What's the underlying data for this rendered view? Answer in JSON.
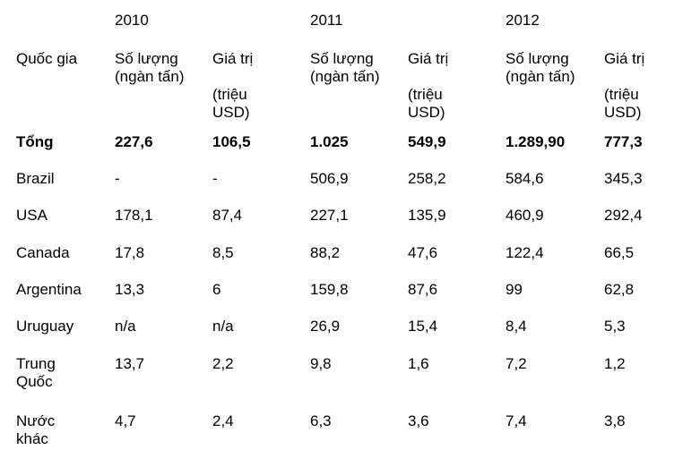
{
  "years": [
    "2010",
    "2011",
    "2012"
  ],
  "header": {
    "country": "Quốc gia",
    "quantity": "Số lượng\n(ngàn tấn)",
    "value_2010": "Giá trị\n\n(triệu\nUSD)",
    "value_2011": "Giá trị\n\n(triệu\nUSD)",
    "value_2012": "Giá trị\n\n(triệu\nUSD)"
  },
  "rows": [
    {
      "country": "Tổng",
      "q2010": "227,6",
      "v2010": "106,5",
      "q2011": "1.025",
      "v2011": "549,9",
      "q2012": "1.289,90",
      "v2012": "777,3"
    },
    {
      "country": "Brazil",
      "q2010": "-",
      "v2010": "-",
      "q2011": "506,9",
      "v2011": "258,2",
      "q2012": "584,6",
      "v2012": "345,3"
    },
    {
      "country": "USA",
      "q2010": "178,1",
      "v2010": "87,4",
      "q2011": "227,1",
      "v2011": "135,9",
      "q2012": "460,9",
      "v2012": "292,4"
    },
    {
      "country": "Canada",
      "q2010": "17,8",
      "v2010": "8,5",
      "q2011": "88,2",
      "v2011": "47,6",
      "q2012": "122,4",
      "v2012": "66,5"
    },
    {
      "country": "Argentina",
      "q2010": "13,3",
      "v2010": "6",
      "q2011": "159,8",
      "v2011": "87,6",
      "q2012": "99",
      "v2012": "62,8"
    },
    {
      "country": "Uruguay",
      "q2010": "n/a",
      "v2010": "n/a",
      "q2011": "26,9",
      "v2011": "15,4",
      "q2012": "8,4",
      "v2012": "5,3"
    },
    {
      "country": "Trung\nQuốc",
      "q2010": "13,7",
      "v2010": "2,2",
      "q2011": "9,8",
      "v2011": "1,6",
      "q2012": "7,2",
      "v2012": "1,2"
    },
    {
      "country": "Nước\nkhác",
      "q2010": "4,7",
      "v2010": "2,4",
      "q2011": "6,3",
      "v2011": "3,6",
      "q2012": "7,4",
      "v2012": "3,8"
    }
  ]
}
